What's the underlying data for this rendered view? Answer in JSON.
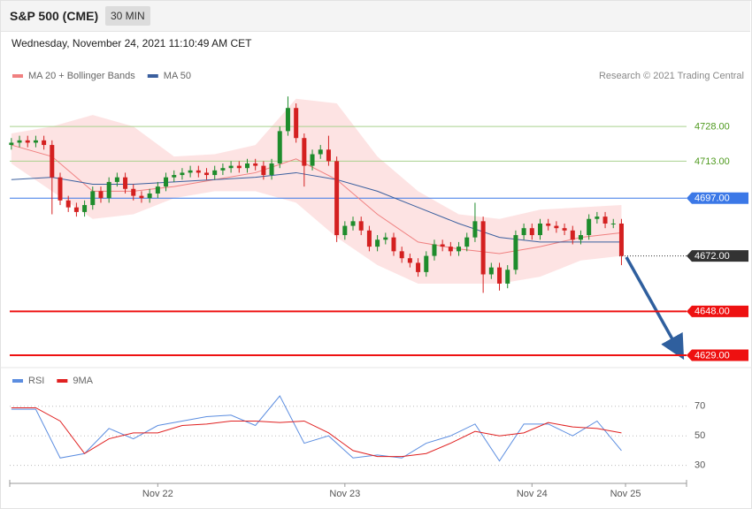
{
  "header": {
    "title": "S&P 500 (CME)",
    "interval": "30 MIN",
    "timestamp": "Wednesday, November 24, 2021 11:10:49 AM CET"
  },
  "chart_data": [
    {
      "type": "candlestick",
      "credit": "Research © 2021 Trading Central",
      "xlim": [
        -0.2,
        83
      ],
      "ylim": [
        4624.8,
        4744.5
      ],
      "x": [
        0,
        1,
        2,
        3,
        4,
        5,
        6,
        7,
        8,
        9,
        10,
        11,
        12,
        13,
        14,
        15,
        16,
        17,
        18,
        19,
        20,
        21,
        22,
        23,
        24,
        25,
        26,
        27,
        28,
        29,
        30,
        31,
        32,
        33,
        34,
        35,
        36,
        37,
        38,
        39,
        40,
        41,
        42,
        43,
        44,
        45,
        46,
        47,
        48,
        49,
        50,
        51,
        52,
        53,
        54,
        55,
        56,
        57,
        58,
        59,
        60,
        61,
        62,
        63,
        64,
        65,
        66,
        67,
        68,
        69,
        70,
        71,
        72,
        73,
        74,
        75
      ],
      "open": [
        4720,
        4721,
        4722,
        4721,
        4722,
        4720,
        4706,
        4696,
        4693,
        4691,
        4694,
        4700,
        4697,
        4704,
        4706,
        4701,
        4698,
        4697,
        4699,
        4702,
        4706,
        4707,
        4708,
        4709,
        4708,
        4707,
        4709,
        4710,
        4711,
        4710,
        4712,
        4711,
        4707,
        4712,
        4726,
        4736,
        4723,
        4711,
        4716,
        4718,
        4713,
        4681,
        4685,
        4687,
        4683,
        4676,
        4679,
        4680,
        4674,
        4671,
        4669,
        4665,
        4672,
        4677,
        4676,
        4674,
        4676,
        4680,
        4687,
        4664,
        4667,
        4660,
        4666,
        4681,
        4684,
        4681,
        4686,
        4685,
        4684,
        4683,
        4679,
        4681,
        4688,
        4689,
        4686,
        4686
      ],
      "high": [
        4723,
        4724,
        4724,
        4724,
        4724,
        4722,
        4708,
        4698,
        4695,
        4696,
        4702,
        4702,
        4706,
        4708,
        4708,
        4703,
        4700,
        4701,
        4704,
        4708,
        4709,
        4710,
        4711,
        4711,
        4710,
        4711,
        4712,
        4713,
        4713,
        4714,
        4714,
        4713,
        4714,
        4728,
        4741,
        4738,
        4725,
        4718,
        4720,
        4724,
        4715,
        4687,
        4689,
        4689,
        4685,
        4681,
        4682,
        4682,
        4676,
        4673,
        4671,
        4674,
        4679,
        4679,
        4678,
        4678,
        4682,
        4695,
        4689,
        4669,
        4669,
        4668,
        4683,
        4686,
        4686,
        4688,
        4688,
        4687,
        4686,
        4685,
        4683,
        4690,
        4691,
        4691,
        4688,
        4688
      ],
      "low": [
        4718,
        4719,
        4719,
        4719,
        4718,
        4690,
        4694,
        4691,
        4689,
        4689,
        4692,
        4695,
        4695,
        4702,
        4699,
        4696,
        4695,
        4695,
        4697,
        4700,
        4704,
        4705,
        4706,
        4706,
        4705,
        4705,
        4707,
        4708,
        4708,
        4708,
        4709,
        4705,
        4705,
        4710,
        4724,
        4721,
        4702,
        4709,
        4714,
        4711,
        4678,
        4679,
        4683,
        4681,
        4674,
        4674,
        4677,
        4672,
        4669,
        4667,
        4663,
        4663,
        4670,
        4674,
        4672,
        4672,
        4674,
        4678,
        4656,
        4662,
        4657,
        4658,
        4664,
        4679,
        4679,
        4679,
        4683,
        4682,
        4681,
        4677,
        4677,
        4679,
        4686,
        4684,
        4684,
        4668
      ],
      "close": [
        4721,
        4722,
        4721,
        4722,
        4720,
        4706,
        4696,
        4693,
        4691,
        4694,
        4700,
        4697,
        4704,
        4706,
        4701,
        4698,
        4697,
        4699,
        4702,
        4706,
        4707,
        4708,
        4709,
        4708,
        4707,
        4709,
        4710,
        4711,
        4710,
        4712,
        4711,
        4707,
        4712,
        4726,
        4736,
        4723,
        4711,
        4716,
        4718,
        4713,
        4681,
        4685,
        4687,
        4683,
        4676,
        4679,
        4680,
        4674,
        4671,
        4669,
        4665,
        4672,
        4677,
        4676,
        4674,
        4676,
        4680,
        4687,
        4664,
        4667,
        4660,
        4666,
        4681,
        4684,
        4681,
        4686,
        4685,
        4684,
        4683,
        4679,
        4681,
        4688,
        4689,
        4686,
        4686,
        4672
      ],
      "up_color": "#1e8c2c",
      "down_color": "#d42020",
      "bands": {
        "x": [
          0,
          5,
          10,
          15,
          20,
          25,
          30,
          35,
          40,
          45,
          50,
          55,
          60,
          65,
          70,
          75
        ],
        "upper": [
          4725,
          4728,
          4733,
          4728,
          4715,
          4716,
          4720,
          4740,
          4738,
          4715,
          4700,
          4690,
          4688,
          4692,
          4693,
          4694
        ],
        "lower": [
          4712,
          4700,
          4688,
          4690,
          4697,
          4700,
          4700,
          4695,
          4680,
          4668,
          4660,
          4660,
          4660,
          4663,
          4670,
          4672
        ],
        "color": "#fcdcdc"
      },
      "series": [
        {
          "name": "MA 20 + Bollinger Bands",
          "color": "#f08080",
          "x": [
            0,
            5,
            10,
            15,
            20,
            25,
            30,
            35,
            40,
            45,
            50,
            55,
            60,
            65,
            70,
            75
          ],
          "values": [
            4720,
            4715,
            4700,
            4700,
            4702,
            4705,
            4708,
            4714,
            4705,
            4690,
            4678,
            4675,
            4673,
            4676,
            4680,
            4682
          ]
        },
        {
          "name": "MA 50",
          "color": "#3a5f9e",
          "x": [
            0,
            5,
            10,
            15,
            20,
            25,
            30,
            35,
            40,
            45,
            50,
            55,
            60,
            65,
            70,
            75
          ],
          "values": [
            4705,
            4706,
            4703,
            4703,
            4704,
            4705,
            4706,
            4708,
            4705,
            4700,
            4693,
            4686,
            4680,
            4678,
            4678,
            4678
          ]
        }
      ],
      "levels": [
        {
          "value": 4728,
          "label": "4728.00",
          "color": "#a9d18e",
          "tag": "none",
          "text_color": "#4f9a1f"
        },
        {
          "value": 4713,
          "label": "4713.00",
          "color": "#a9d18e",
          "tag": "none",
          "text_color": "#4f9a1f"
        },
        {
          "value": 4697,
          "label": "4697.00",
          "color": "#3b78e7",
          "tag": "#3b78e7",
          "text_color": "#ffffff"
        },
        {
          "value": 4672,
          "label": "4672.00",
          "color": "#333333",
          "tag": "#333333",
          "text_color": "#ffffff"
        },
        {
          "value": 4648,
          "label": "4648.00",
          "color": "#ee1111",
          "tag": "#ee1111",
          "text_color": "#ffffff"
        },
        {
          "value": 4629,
          "label": "4629.00",
          "color": "#ee1111",
          "tag": "#ee1111",
          "text_color": "#ffffff"
        }
      ]
    },
    {
      "type": "line",
      "xlim": [
        -0.2,
        83
      ],
      "ylim": [
        19,
        95
      ],
      "yticks": [
        30,
        50,
        70
      ],
      "grid": true,
      "xticks": [
        {
          "value": 18,
          "label": "Nov 22"
        },
        {
          "value": 41,
          "label": "Nov 23"
        },
        {
          "value": 64,
          "label": "Nov 24"
        },
        {
          "value": 75.5,
          "label": "Nov 25"
        }
      ],
      "series": [
        {
          "name": "RSI",
          "color": "#5b8de0",
          "x": [
            0,
            3,
            6,
            9,
            12,
            15,
            18,
            21,
            24,
            27,
            30,
            33,
            36,
            39,
            42,
            45,
            48,
            51,
            54,
            57,
            60,
            63,
            66,
            69,
            72,
            75
          ],
          "values": [
            68,
            68,
            35,
            38,
            55,
            48,
            57,
            60,
            63,
            64,
            57,
            77,
            45,
            50,
            35,
            37,
            35,
            45,
            50,
            58,
            33,
            58,
            58,
            50,
            60,
            40
          ]
        },
        {
          "name": "9MA",
          "color": "#e02020",
          "x": [
            0,
            3,
            6,
            9,
            12,
            15,
            18,
            21,
            24,
            27,
            30,
            33,
            36,
            39,
            42,
            45,
            48,
            51,
            54,
            57,
            60,
            63,
            66,
            69,
            72,
            75
          ],
          "values": [
            69,
            69,
            60,
            38,
            48,
            52,
            52,
            57,
            58,
            60,
            60,
            59,
            60,
            52,
            40,
            36,
            36,
            38,
            45,
            53,
            50,
            52,
            59,
            56,
            55,
            52
          ]
        }
      ]
    }
  ]
}
